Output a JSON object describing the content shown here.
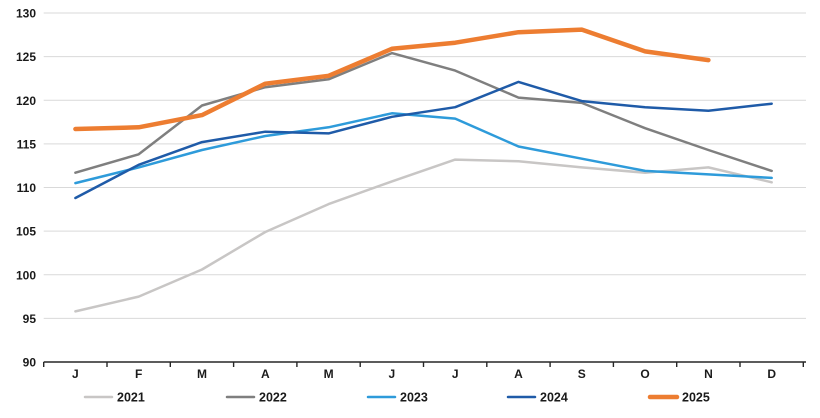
{
  "chart_data": {
    "type": "line",
    "title": "",
    "xlabel": "",
    "ylabel": "",
    "categories": [
      "J",
      "F",
      "M",
      "A",
      "M",
      "J",
      "J",
      "A",
      "S",
      "O",
      "N",
      "D"
    ],
    "y_axis": {
      "min": 90,
      "max": 130,
      "step": 5,
      "tick_labels": [
        "90",
        "95",
        "100",
        "105",
        "110",
        "115",
        "120",
        "125",
        "130"
      ]
    },
    "grid": true,
    "legend_position": "bottom",
    "legend_entries": [
      "2021",
      "2022",
      "2023",
      "2024",
      "2025"
    ],
    "series": [
      {
        "name": "2021",
        "color": "#c8c6c5",
        "width": 2.5,
        "values": [
          95.8,
          97.5,
          100.6,
          104.9,
          108.1,
          110.7,
          113.2,
          113.0,
          112.3,
          111.7,
          112.3,
          110.6
        ]
      },
      {
        "name": "2022",
        "color": "#7f7f7f",
        "width": 2.5,
        "values": [
          111.7,
          113.8,
          119.4,
          121.5,
          122.4,
          125.4,
          123.4,
          120.3,
          119.7,
          116.8,
          114.3,
          111.9
        ]
      },
      {
        "name": "2023",
        "color": "#2e9bda",
        "width": 2.5,
        "values": [
          110.5,
          112.3,
          114.3,
          115.9,
          116.9,
          118.5,
          117.9,
          114.7,
          113.3,
          111.9,
          111.5,
          111.1
        ]
      },
      {
        "name": "2024",
        "color": "#1f5ba8",
        "width": 2.5,
        "values": [
          108.8,
          112.6,
          115.2,
          116.4,
          116.2,
          118.1,
          119.2,
          122.1,
          119.9,
          119.2,
          118.8,
          119.6
        ]
      },
      {
        "name": "2025",
        "color": "#ed7d31",
        "width": 4.5,
        "values": [
          116.7,
          116.9,
          118.3,
          121.9,
          122.8,
          125.9,
          126.6,
          127.8,
          128.1,
          125.6,
          124.6,
          null
        ]
      }
    ],
    "colors": {
      "background": "#ffffff",
      "gridline": "#d9d9d9",
      "axis_line": "#262626",
      "label_text": "#1a1a1a"
    }
  }
}
